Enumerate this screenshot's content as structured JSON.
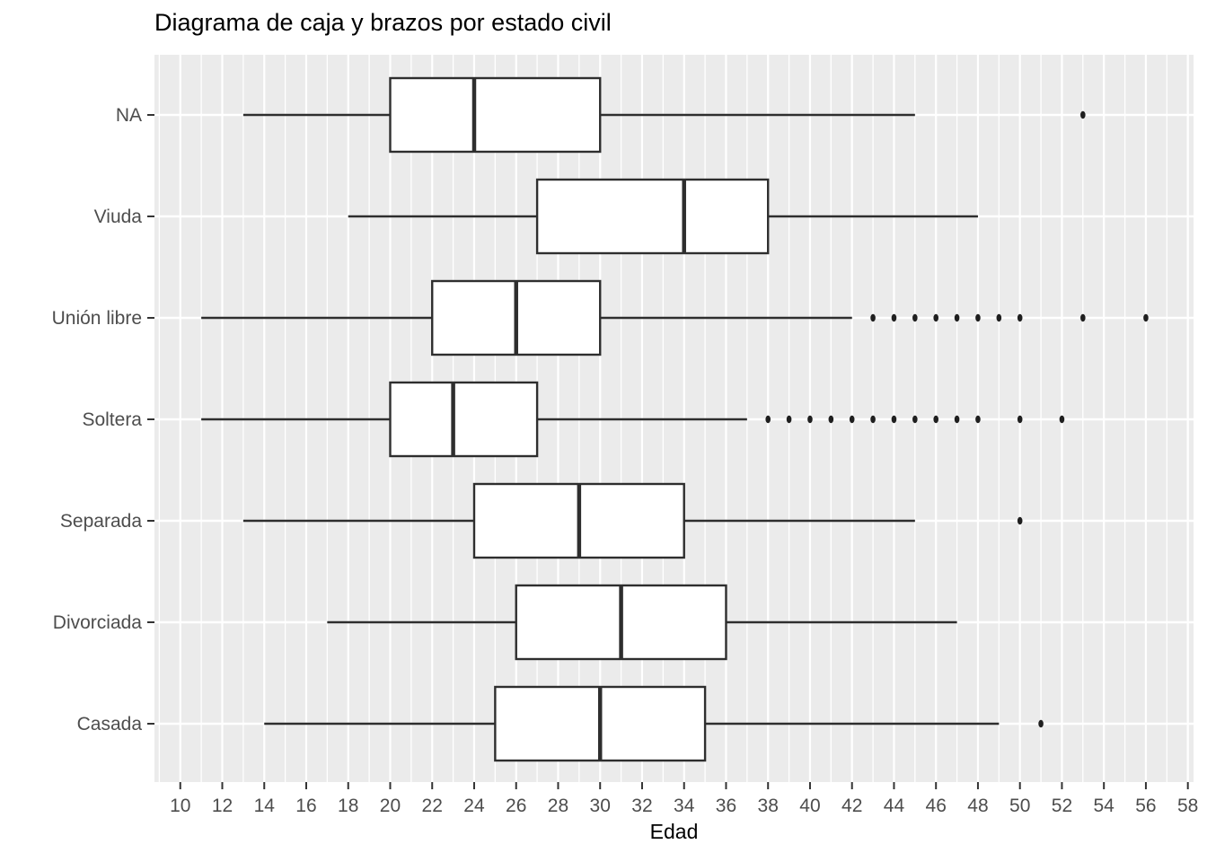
{
  "chart_data": {
    "type": "boxplot",
    "orientation": "horizontal",
    "title": "Diagrama de caja y brazos por estado civil",
    "xlabel": "Edad",
    "ylabel": "",
    "x_ticks": [
      10,
      12,
      14,
      16,
      18,
      20,
      22,
      24,
      26,
      28,
      30,
      32,
      34,
      36,
      38,
      40,
      42,
      44,
      46,
      48,
      50,
      52,
      54,
      56,
      58
    ],
    "xlim": [
      8.77,
      58.27
    ],
    "grid": {
      "vertical_major_step": 2,
      "vertical_minor_at_odd_values": true,
      "horizontal_line_per_category": true,
      "legend": "none"
    },
    "categories_top_to_bottom": [
      "NA",
      "Viuda",
      "Unión libre",
      "Soltera",
      "Separada",
      "Divorciada",
      "Casada"
    ],
    "series": [
      {
        "category": "NA",
        "whisker_low": 13,
        "q1": 20,
        "median": 24,
        "q3": 30,
        "whisker_high": 45,
        "outliers": [
          53
        ]
      },
      {
        "category": "Viuda",
        "whisker_low": 18,
        "q1": 27,
        "median": 34,
        "q3": 38,
        "whisker_high": 48,
        "outliers": []
      },
      {
        "category": "Unión libre",
        "whisker_low": 11,
        "q1": 22,
        "median": 26,
        "q3": 30,
        "whisker_high": 42,
        "outliers": [
          43,
          44,
          45,
          46,
          47,
          48,
          49,
          50,
          53,
          56
        ]
      },
      {
        "category": "Soltera",
        "whisker_low": 11,
        "q1": 20,
        "median": 23,
        "q3": 27,
        "whisker_high": 37,
        "outliers": [
          38,
          39,
          40,
          41,
          42,
          43,
          44,
          45,
          46,
          47,
          48,
          50,
          52
        ]
      },
      {
        "category": "Separada",
        "whisker_low": 13,
        "q1": 24,
        "median": 29,
        "q3": 34,
        "whisker_high": 45,
        "outliers": [
          50
        ]
      },
      {
        "category": "Divorciada",
        "whisker_low": 17,
        "q1": 26,
        "median": 31,
        "q3": 36,
        "whisker_high": 47,
        "outliers": []
      },
      {
        "category": "Casada",
        "whisker_low": 14,
        "q1": 25,
        "median": 30,
        "q3": 35,
        "whisker_high": 49,
        "outliers": [
          51
        ]
      }
    ],
    "colors": {
      "panel_background": "#EBEBEB",
      "gridline": "#FFFFFF",
      "box_fill": "#FFFFFF",
      "box_stroke": "#2E2E2E",
      "median_stroke": "#2E2E2E",
      "whisker_stroke": "#2E2E2E",
      "outlier_fill": "#1F1F1F",
      "axis_text": "#4D4D4D",
      "tick_mark": "#333333",
      "title_text": "#000000"
    }
  }
}
